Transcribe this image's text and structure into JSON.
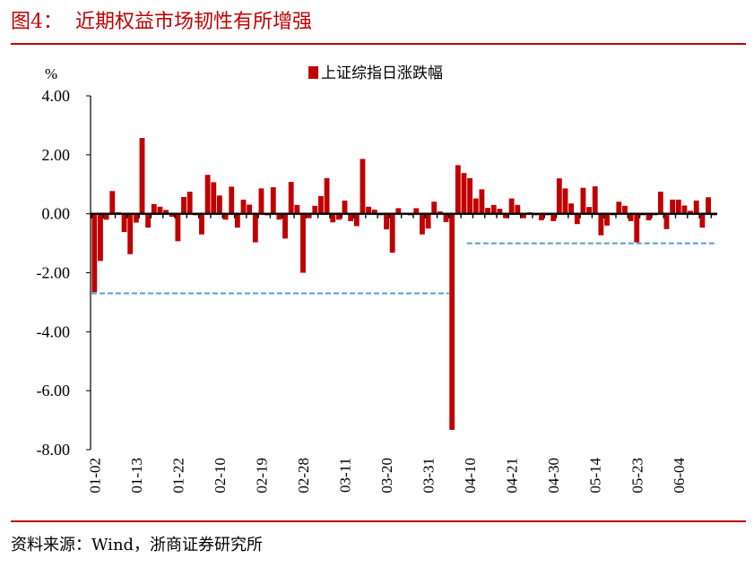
{
  "header": {
    "title": "图4：  近期权益市场韧性有所增强"
  },
  "footer": {
    "source": "资料来源：Wind，浙商证券研究所"
  },
  "colors": {
    "accent": "#c00000",
    "bar": "#c00000",
    "reference_line": "#5b9bd5"
  },
  "chart_data": {
    "type": "bar",
    "title": "",
    "ylabel": "%",
    "ylim": [
      -8,
      4
    ],
    "yticks": [
      "4.00",
      "2.00",
      "0.00",
      "-2.00",
      "-4.00",
      "-6.00",
      "-8.00"
    ],
    "legend": {
      "position": "top",
      "entries": [
        "上证综指日涨跌幅"
      ]
    },
    "tick_labels": [
      "01-02",
      "01-13",
      "01-22",
      "02-10",
      "02-19",
      "02-28",
      "03-11",
      "03-20",
      "03-31",
      "04-10",
      "04-21",
      "04-30",
      "05-14",
      "05-23",
      "06-04"
    ],
    "tick_every": 7,
    "series": [
      {
        "name": "上证综指日涨跌幅",
        "values": [
          -2.66,
          -1.6,
          -0.2,
          0.77,
          0.05,
          -0.62,
          -1.37,
          -0.3,
          2.57,
          -0.47,
          0.33,
          0.24,
          0.13,
          -0.1,
          -0.93,
          0.57,
          0.75,
          -0.05,
          -0.7,
          1.32,
          1.07,
          0.62,
          -0.2,
          0.92,
          -0.47,
          0.48,
          0.31,
          -0.97,
          0.86,
          -0.05,
          0.9,
          -0.2,
          -0.84,
          1.08,
          0.3,
          -2.0,
          -0.15,
          0.27,
          0.6,
          1.21,
          -0.29,
          -0.2,
          0.45,
          -0.25,
          -0.42,
          1.86,
          0.24,
          0.14,
          -0.05,
          -0.53,
          -1.32,
          0.19,
          0.0,
          -0.05,
          0.19,
          -0.7,
          -0.5,
          0.41,
          0.08,
          -0.28,
          -7.33,
          1.65,
          1.38,
          1.21,
          0.52,
          0.83,
          0.2,
          0.3,
          0.17,
          -0.15,
          0.52,
          0.3,
          -0.15,
          0.05,
          -0.05,
          -0.22,
          -0.05,
          -0.25,
          1.2,
          0.86,
          0.35,
          -0.35,
          0.88,
          0.23,
          0.93,
          -0.73,
          -0.4,
          -0.05,
          0.41,
          0.27,
          -0.25,
          -0.97,
          -0.05,
          -0.22,
          -0.05,
          0.75,
          -0.52,
          0.48,
          0.48,
          0.28,
          0.1,
          0.45,
          -0.47,
          0.56,
          -0.05
        ]
      }
    ],
    "reference_lines": [
      {
        "value": -2.7,
        "from_index": 0,
        "to_index": 59,
        "style": "dashed"
      },
      {
        "value": -1.0,
        "from_index": 63,
        "to_index": 104,
        "style": "dashed"
      }
    ],
    "grid": false
  }
}
